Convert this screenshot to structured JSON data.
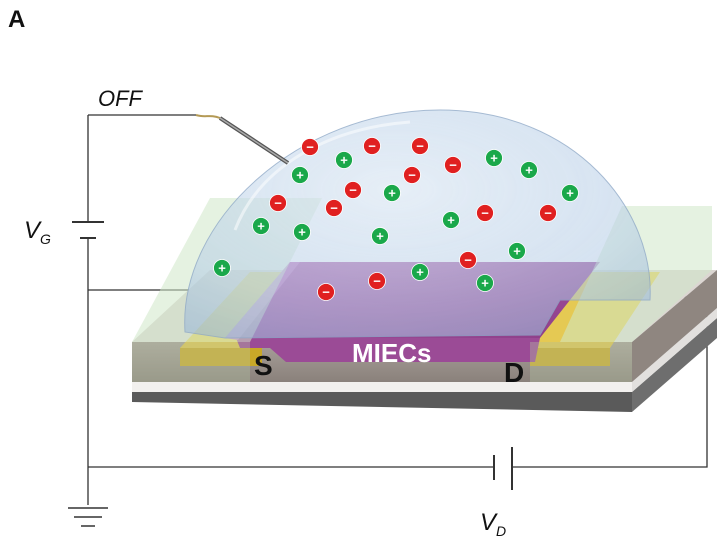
{
  "panel_label": "A",
  "labels": {
    "switch_state": "OFF",
    "gate_voltage_main": "V",
    "gate_voltage_sub": "G",
    "drain_voltage_main": "V",
    "drain_voltage_sub": "D",
    "source": "S",
    "drain": "D",
    "channel": "MIECs"
  },
  "ions": {
    "negative_symbol": "−",
    "positive_symbol": "+",
    "negative_color": "#e02020",
    "positive_color": "#1aa84a"
  },
  "colors": {
    "channel": "#a0499a",
    "electrode": "#e8c830",
    "electrolyte_dome": "#b6cde6",
    "substrate_top": "#dcd6d2",
    "substrate_side": "#9a908a",
    "base_dark": "#555555",
    "wire": "#333333"
  }
}
